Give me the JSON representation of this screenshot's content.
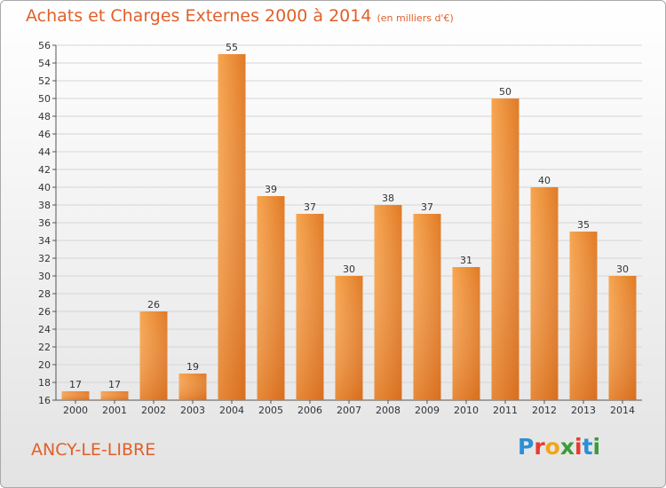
{
  "title": "Achats et Charges Externes 2000 à 2014",
  "subtitle": "(en milliers d'€)",
  "place": "ANCY-LE-LIBRE",
  "brand": {
    "letters": [
      {
        "char": "P",
        "color": "#2a8fd6"
      },
      {
        "char": "r",
        "color": "#e63b2e"
      },
      {
        "char": "o",
        "color": "#f2a516"
      },
      {
        "char": "x",
        "color": "#3a9c3a"
      },
      {
        "char": "i",
        "color": "#e63b2e"
      },
      {
        "char": "t",
        "color": "#2a8fd6"
      },
      {
        "char": "i",
        "color": "#3a9c3a"
      }
    ]
  },
  "colors": {
    "accent": "#e0602a",
    "bar_light": "#f7a550",
    "bar_dark": "#e07a25"
  },
  "chart_data": {
    "type": "bar",
    "title": "Achats et Charges Externes 2000 à 2014",
    "subtitle": "(en milliers d'€)",
    "xlabel": "",
    "ylabel": "",
    "categories": [
      "2000",
      "2001",
      "2002",
      "2003",
      "2004",
      "2005",
      "2006",
      "2007",
      "2008",
      "2009",
      "2010",
      "2011",
      "2012",
      "2013",
      "2014"
    ],
    "values": [
      17,
      17,
      26,
      19,
      55,
      39,
      37,
      30,
      38,
      37,
      31,
      50,
      40,
      35,
      30
    ],
    "ylim": [
      16,
      56
    ],
    "yticks": [
      16,
      18,
      20,
      22,
      24,
      26,
      28,
      30,
      32,
      34,
      36,
      38,
      40,
      42,
      44,
      46,
      48,
      50,
      52,
      54,
      56
    ],
    "grid": true,
    "legend": "none",
    "data_labels": true
  }
}
